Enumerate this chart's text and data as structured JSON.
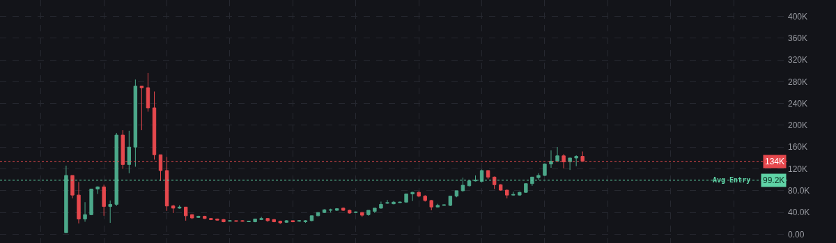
{
  "chart_data": {
    "type": "candlestick",
    "categories": [
      null,
      null,
      null,
      null,
      null,
      null,
      null,
      null,
      null,
      null,
      null,
      null,
      null,
      null,
      null,
      null,
      null,
      null,
      null,
      null,
      null,
      null,
      null,
      null,
      null,
      null,
      null,
      null,
      null,
      null,
      null,
      null,
      null,
      null,
      null,
      null,
      null,
      null,
      null,
      null,
      null,
      null,
      null,
      null,
      null,
      null,
      null,
      null,
      null,
      null,
      null,
      null,
      null,
      null,
      null,
      null,
      null,
      null,
      null,
      null,
      null,
      null,
      null,
      null,
      null,
      null,
      null,
      null,
      null,
      null,
      null,
      null,
      null,
      null,
      null,
      null,
      null,
      null,
      null,
      null,
      null,
      null,
      null,
      null,
      null,
      null,
      null,
      null,
      null,
      null,
      null,
      null,
      null,
      null,
      null,
      null,
      null,
      null,
      null,
      null,
      null,
      null,
      null,
      null,
      null,
      null,
      null,
      null,
      null,
      null,
      null,
      null,
      null,
      null,
      null,
      null,
      null,
      null,
      null,
      null,
      null,
      null,
      null,
      null,
      null
    ],
    "ohlc": [
      null,
      null,
      null,
      null,
      null,
      null,
      null,
      null,
      null,
      null,
      [
        3000,
        126000,
        2000,
        108000
      ],
      [
        108000,
        108000,
        66000,
        72000
      ],
      [
        72000,
        96000,
        20000,
        28000
      ],
      [
        28000,
        59000,
        23000,
        36000
      ],
      [
        36000,
        83000,
        35000,
        83000
      ],
      [
        83000,
        88000,
        74000,
        87000
      ],
      [
        87000,
        91000,
        34000,
        51000
      ],
      [
        51000,
        62000,
        21000,
        55000
      ],
      [
        55000,
        186000,
        52000,
        182000
      ],
      [
        182000,
        191000,
        120000,
        128000
      ],
      [
        128000,
        190000,
        112000,
        160000
      ],
      [
        160000,
        284000,
        124000,
        272000
      ],
      [
        272000,
        272000,
        191000,
        269000
      ],
      [
        269000,
        296000,
        225000,
        232000
      ],
      [
        232000,
        262000,
        137000,
        146000
      ],
      [
        146000,
        146000,
        98000,
        117000
      ],
      [
        117000,
        142000,
        43000,
        52000
      ],
      [
        52000,
        54000,
        39000,
        48000
      ],
      [
        48000,
        53000,
        47000,
        50000
      ],
      [
        50000,
        50000,
        25000,
        34000
      ],
      [
        36000,
        37000,
        28000,
        30000
      ],
      [
        31000,
        34000,
        30000,
        33000
      ],
      [
        33000,
        34000,
        28000,
        29000
      ],
      [
        29000,
        30000,
        26000,
        27000
      ],
      [
        28000,
        29000,
        25000,
        26000
      ],
      [
        27000,
        28000,
        22000,
        23000
      ],
      [
        24000,
        26000,
        23000,
        25000
      ],
      [
        25000,
        25000,
        23000,
        24000
      ],
      [
        25000,
        26000,
        23000,
        24000
      ],
      [
        23000,
        24000,
        23000,
        24000
      ],
      [
        23000,
        28000,
        22000,
        28000
      ],
      [
        27000,
        32000,
        26000,
        29000
      ],
      [
        29000,
        30000,
        23000,
        25000
      ],
      [
        27000,
        28000,
        22000,
        23000
      ],
      [
        24000,
        25000,
        19000,
        21000
      ],
      [
        22000,
        26000,
        21000,
        25000
      ],
      [
        25000,
        25000,
        22000,
        23000
      ],
      [
        24000,
        26000,
        23000,
        25000
      ],
      [
        23000,
        26000,
        21000,
        25000
      ],
      [
        25000,
        34000,
        24000,
        34000
      ],
      [
        34000,
        40000,
        33000,
        40000
      ],
      [
        40000,
        46000,
        39000,
        45000
      ],
      [
        44000,
        47000,
        40000,
        45000
      ],
      [
        44000,
        48000,
        43000,
        47000
      ],
      [
        48000,
        49000,
        43000,
        44000
      ],
      [
        44000,
        45000,
        38000,
        39000
      ],
      [
        40000,
        42000,
        39000,
        41000
      ],
      [
        40000,
        41000,
        32000,
        35000
      ],
      [
        36000,
        44000,
        34000,
        44000
      ],
      [
        42000,
        48000,
        39000,
        48000
      ],
      [
        48000,
        60000,
        47000,
        55000
      ],
      [
        57000,
        63000,
        56000,
        58000
      ],
      [
        56000,
        61000,
        55000,
        59000
      ],
      [
        58000,
        60000,
        57000,
        59000
      ],
      [
        59000,
        74000,
        58000,
        74000
      ],
      [
        74000,
        78000,
        61000,
        77000
      ],
      [
        77000,
        79000,
        68000,
        70000
      ],
      [
        70000,
        72000,
        60000,
        62000
      ],
      [
        62000,
        63000,
        44000,
        50000
      ],
      [
        50000,
        56000,
        49000,
        53000
      ],
      [
        53000,
        55000,
        53000,
        54000
      ],
      [
        53000,
        70000,
        52000,
        70000
      ],
      [
        70000,
        80000,
        68000,
        80000
      ],
      [
        80000,
        104000,
        78000,
        90000
      ],
      [
        89000,
        99000,
        88000,
        98000
      ],
      [
        98000,
        108000,
        97000,
        99000
      ],
      [
        97000,
        119000,
        95000,
        117000
      ],
      [
        117000,
        117000,
        101000,
        105000
      ],
      [
        105000,
        106000,
        83000,
        91000
      ],
      [
        91000,
        92000,
        80000,
        81000
      ],
      [
        81000,
        82000,
        66000,
        72000
      ],
      [
        72000,
        78000,
        71000,
        73000
      ],
      [
        72000,
        78000,
        71000,
        77000
      ],
      [
        77000,
        93000,
        76000,
        93000
      ],
      [
        93000,
        105000,
        89000,
        105000
      ],
      [
        104000,
        112000,
        100000,
        108000
      ],
      [
        108000,
        130000,
        107000,
        129000
      ],
      [
        129000,
        154000,
        122000,
        134000
      ],
      [
        134000,
        160000,
        133000,
        144000
      ],
      [
        144000,
        147000,
        121000,
        133000
      ],
      [
        133000,
        140000,
        118000,
        140000
      ],
      [
        140000,
        145000,
        125000,
        143000
      ],
      [
        143000,
        152000,
        133000,
        134000
      ],
      null,
      null,
      null,
      null,
      null,
      null,
      null,
      null,
      null,
      null,
      null,
      null,
      null,
      null,
      null,
      null,
      null,
      null,
      null,
      null,
      null,
      null,
      null,
      null,
      null,
      null,
      null,
      null,
      null,
      null,
      null,
      null
    ],
    "ylim": [
      -16000,
      430000
    ],
    "yticks": [
      {
        "value": 0,
        "label": "0.00"
      },
      {
        "value": 40000,
        "label": "40.0K"
      },
      {
        "value": 80000,
        "label": "80.0K"
      },
      {
        "value": 120000,
        "label": "120K"
      },
      {
        "value": 160000,
        "label": "160K"
      },
      {
        "value": 200000,
        "label": "200K"
      },
      {
        "value": 240000,
        "label": "240K"
      },
      {
        "value": 280000,
        "label": "280K"
      },
      {
        "value": 320000,
        "label": "320K"
      },
      {
        "value": 360000,
        "label": "360K"
      },
      {
        "value": 400000,
        "label": "400K"
      }
    ],
    "grid": true,
    "tick_labels": "y",
    "ref_lines": [
      {
        "axis": "y",
        "value": 134000,
        "label": "134K",
        "color": "#e5484d",
        "line_style": "dotted"
      },
      {
        "axis": "y",
        "value": 99200,
        "label": "Avg Entry",
        "color": "#5fd3a6",
        "line_style": "dotted"
      }
    ],
    "annotations": [
      {
        "text": "99.2K",
        "y": 99200
      }
    ]
  }
}
